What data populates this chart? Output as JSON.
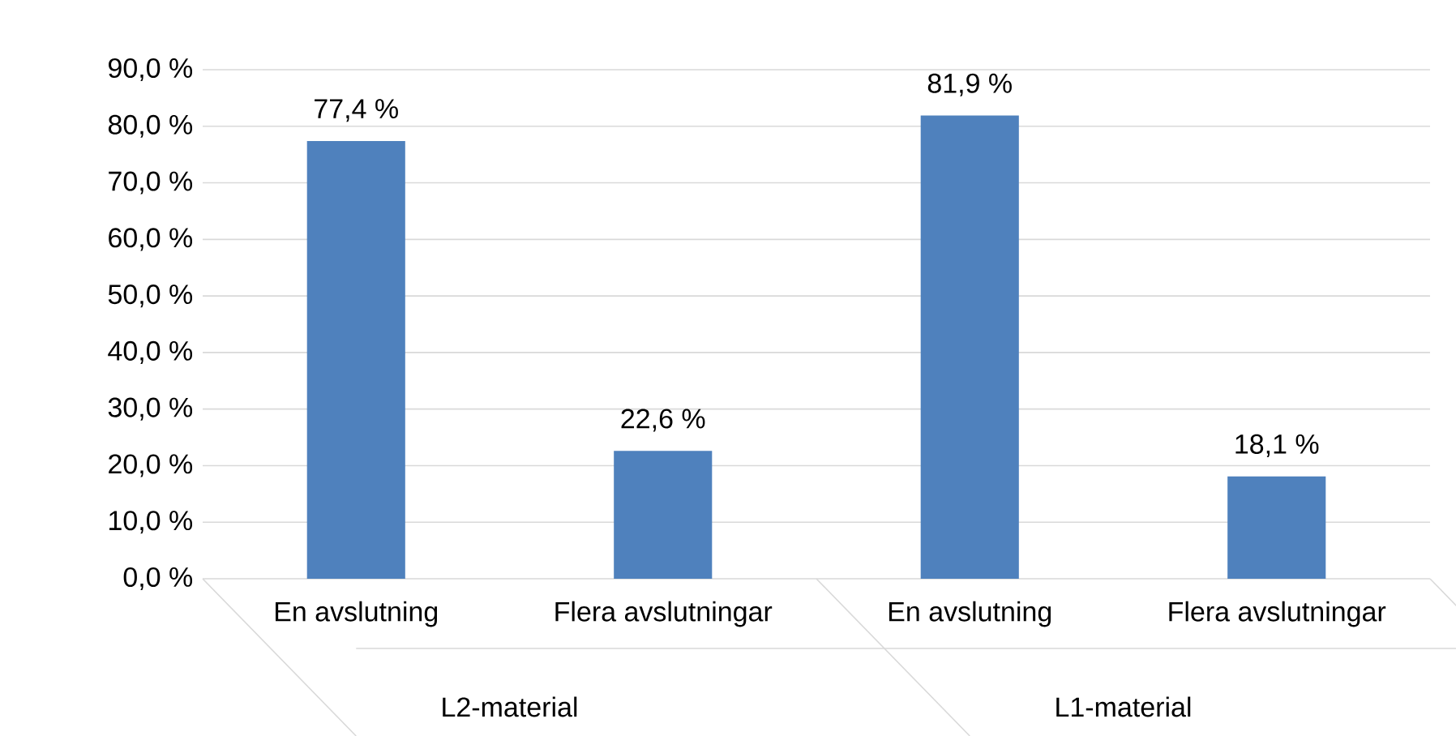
{
  "chart_data": {
    "type": "bar",
    "categories": [
      "En avslutning",
      "Flera avslutningar",
      "En avslutning",
      "Flera avslutningar"
    ],
    "values": [
      77.4,
      22.6,
      81.9,
      18.1
    ],
    "value_labels": [
      "77,4 %",
      "22,6 %",
      "81,9 %",
      "18,1 %"
    ],
    "color": "#4f81bd",
    "ylim": [
      0,
      90
    ],
    "yticks": [
      {
        "value": 0,
        "label": "0,0 %"
      },
      {
        "value": 10,
        "label": "10,0 %"
      },
      {
        "value": 20,
        "label": "20,0 %"
      },
      {
        "value": 30,
        "label": "30,0 %"
      },
      {
        "value": 40,
        "label": "40,0 %"
      },
      {
        "value": 50,
        "label": "50,0 %"
      },
      {
        "value": 60,
        "label": "60,0 %"
      },
      {
        "value": 70,
        "label": "70,0 %"
      },
      {
        "value": 80,
        "label": "80,0 %"
      },
      {
        "value": 90,
        "label": "90,0 %"
      }
    ],
    "grid": "y",
    "annotations": [
      "L2-material",
      "L1-material"
    ]
  }
}
